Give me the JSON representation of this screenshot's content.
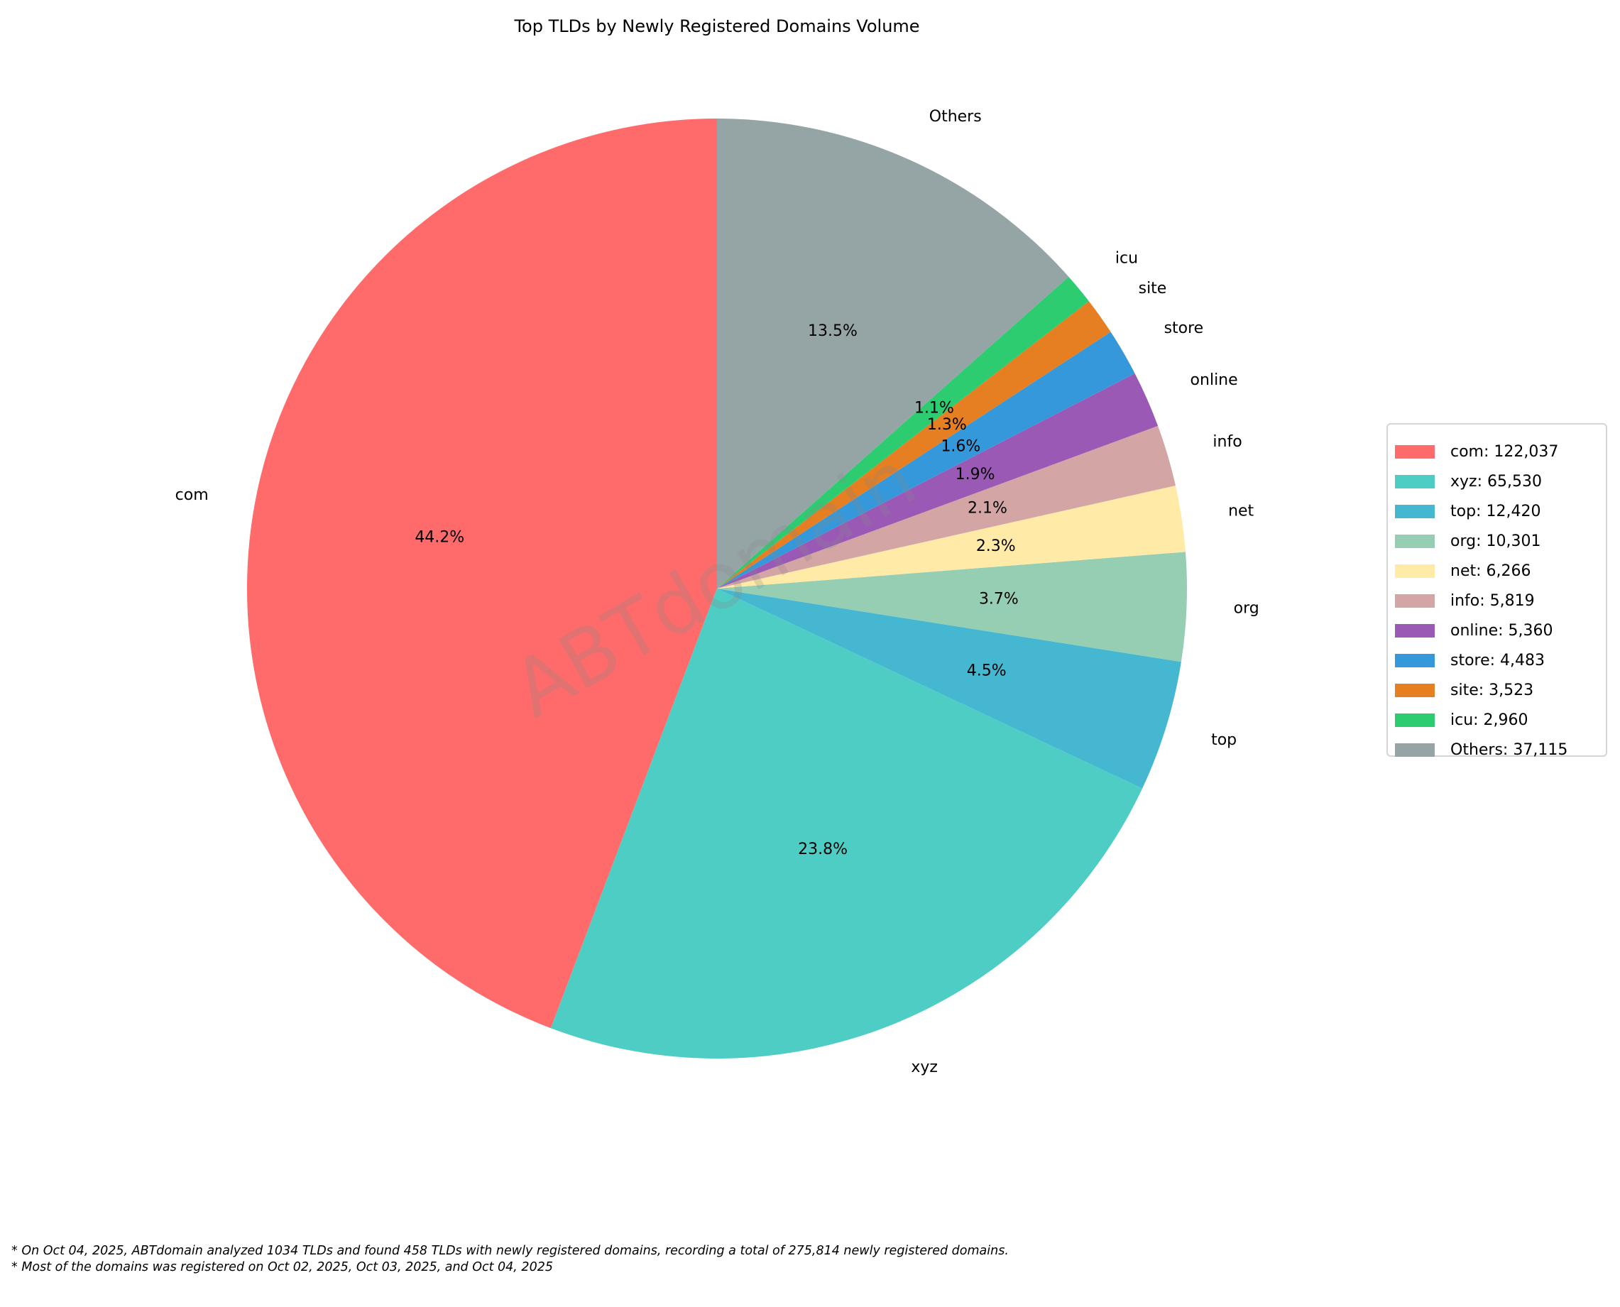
{
  "chart_data": {
    "type": "pie",
    "title": "Top TLDs by Newly Registered Domains Volume",
    "start_angle": 90,
    "direction": "counterclockwise",
    "categories": [
      "com",
      "xyz",
      "top",
      "org",
      "net",
      "info",
      "online",
      "store",
      "site",
      "icu",
      "Others"
    ],
    "values": [
      122037,
      65530,
      12420,
      10301,
      6266,
      5819,
      5360,
      4483,
      3523,
      2960,
      37115
    ],
    "percent_labels": [
      "44.2%",
      "23.8%",
      "4.5%",
      "3.7%",
      "2.3%",
      "2.1%",
      "1.9%",
      "1.6%",
      "1.3%",
      "1.1%",
      "13.5%"
    ],
    "colors": [
      "#ff6b6b",
      "#4ecdc4",
      "#45b7d1",
      "#96ceb4",
      "#ffeaa7",
      "#d4a5a5",
      "#9b59b6",
      "#3498db",
      "#e67e22",
      "#2ecc71",
      "#95a5a6"
    ],
    "legend": {
      "placement": "right",
      "entries": [
        "com: 122,037",
        "xyz: 65,530",
        "top: 12,420",
        "org: 10,301",
        "net: 6,266",
        "info: 5,819",
        "online: 5,360",
        "store: 4,483",
        "site: 3,523",
        "icu: 2,960",
        "Others: 37,115"
      ]
    },
    "watermark": "ABTdomain"
  },
  "footnotes": [
    "* On Oct 04, 2025, ABTdomain analyzed 1034 TLDs and found 458 TLDs with newly registered domains, recording a total of 275,814 newly registered domains.",
    "* Most of the domains was registered on Oct 02, 2025, Oct 03, 2025, and Oct 04, 2025"
  ]
}
